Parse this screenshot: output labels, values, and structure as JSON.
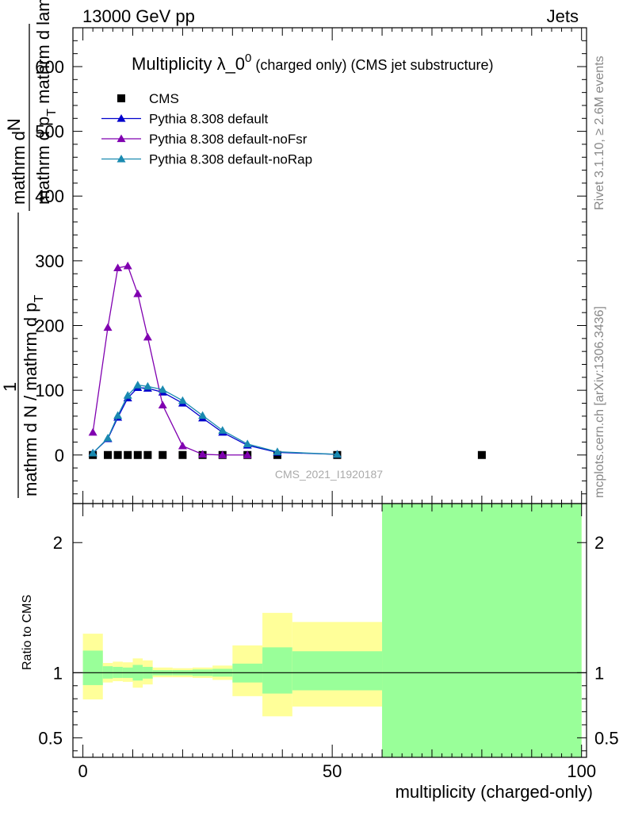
{
  "header": {
    "left": "13000 GeV pp",
    "right": "Jets"
  },
  "side": {
    "rivet": "Rivet 3.1.10, ≥ 2.6M events",
    "mcplots": "mcplots.cern.ch [arXiv:1306.3436]"
  },
  "watermark": "CMS_2021_I1920187",
  "chart_data": {
    "type": "scatter",
    "title": {
      "main": "Multiplicity λ_0",
      "sup": "0",
      "rest": " (charged only) (CMS jet substructure)"
    },
    "ylabel": {
      "frac_num_part": "mathrm d",
      "frac_num_N": "N",
      "frac_den": "mathrm d p",
      "frac_den_sub": "T",
      "frac_den_rest": " mathrm d lambda",
      "one": "1",
      "lower": "mathrm d N / mathrm d p",
      "lower_sub": "T"
    },
    "xlabel": "multiplicity (charged-only)",
    "ratio_ylabel": "Ratio to CMS",
    "xlim": [
      -2,
      101
    ],
    "ylim": [
      -75,
      660
    ],
    "ratio_ylim": [
      0.35,
      2.3
    ],
    "xticks": [
      0,
      50,
      100
    ],
    "yticks": [
      0,
      100,
      200,
      300,
      400,
      500,
      600
    ],
    "ratio_yticks": [
      {
        "v": 0.5,
        "label": "0.5"
      },
      {
        "v": 1,
        "label": "1"
      },
      {
        "v": 2,
        "label": "2"
      }
    ],
    "legend_position": "top-left",
    "series": [
      {
        "name": "CMS",
        "color": "#000000",
        "marker": "square",
        "x": [
          2,
          5,
          7,
          9,
          11,
          13,
          16,
          20,
          24,
          28,
          33,
          39,
          51,
          80
        ],
        "y": [
          0,
          0,
          0,
          0,
          0,
          0,
          0,
          0,
          0,
          0,
          0,
          0,
          0,
          0
        ]
      },
      {
        "name": "Pythia 8.308 default",
        "color": "#0000cc",
        "marker": "triangle",
        "x": [
          2,
          5,
          7,
          9,
          11,
          13,
          16,
          20,
          24,
          28,
          33,
          39,
          51
        ],
        "y": [
          3,
          25,
          58,
          88,
          104,
          103,
          97,
          80,
          57,
          35,
          15,
          4,
          1
        ]
      },
      {
        "name": "Pythia 8.308 default-noFsr",
        "color": "#8000b0",
        "marker": "triangle",
        "x": [
          2,
          5,
          7,
          9,
          11,
          13,
          16,
          20,
          24,
          28,
          33
        ],
        "y": [
          35,
          197,
          289,
          292,
          249,
          182,
          77,
          14,
          1,
          0,
          0
        ]
      },
      {
        "name": "Pythia 8.308 default-noRap",
        "color": "#1a8ab0",
        "marker": "triangle",
        "x": [
          2,
          5,
          7,
          9,
          11,
          13,
          16,
          20,
          24,
          28,
          33,
          39,
          51
        ],
        "y": [
          3,
          26,
          61,
          92,
          108,
          106,
          101,
          84,
          61,
          38,
          17,
          5,
          1
        ]
      }
    ],
    "ratio_bands": [
      {
        "x0": 0,
        "x1": 4,
        "in_lo": 0.905,
        "in_hi": 1.17,
        "out_lo": 0.795,
        "out_hi": 1.3
      },
      {
        "x0": 4,
        "x1": 6,
        "in_lo": 0.955,
        "in_hi": 1.05,
        "out_lo": 0.925,
        "out_hi": 1.075
      },
      {
        "x0": 6,
        "x1": 8,
        "in_lo": 0.96,
        "in_hi": 1.045,
        "out_lo": 0.935,
        "out_hi": 1.085
      },
      {
        "x0": 8,
        "x1": 10,
        "in_lo": 0.96,
        "in_hi": 1.04,
        "out_lo": 0.93,
        "out_hi": 1.08
      },
      {
        "x0": 10,
        "x1": 12,
        "in_lo": 0.94,
        "in_hi": 1.06,
        "out_lo": 0.885,
        "out_hi": 1.11
      },
      {
        "x0": 12,
        "x1": 14,
        "in_lo": 0.955,
        "in_hi": 1.045,
        "out_lo": 0.91,
        "out_hi": 1.095
      },
      {
        "x0": 14,
        "x1": 18,
        "in_lo": 0.98,
        "in_hi": 1.02,
        "out_lo": 0.965,
        "out_hi": 1.04
      },
      {
        "x0": 18,
        "x1": 22,
        "in_lo": 0.98,
        "in_hi": 1.02,
        "out_lo": 0.965,
        "out_hi": 1.035
      },
      {
        "x0": 22,
        "x1": 26,
        "in_lo": 0.975,
        "in_hi": 1.025,
        "out_lo": 0.96,
        "out_hi": 1.04
      },
      {
        "x0": 26,
        "x1": 30,
        "in_lo": 0.97,
        "in_hi": 1.03,
        "out_lo": 0.945,
        "out_hi": 1.055
      },
      {
        "x0": 30,
        "x1": 36,
        "in_lo": 0.925,
        "in_hi": 1.07,
        "out_lo": 0.82,
        "out_hi": 1.21
      },
      {
        "x0": 36,
        "x1": 42,
        "in_lo": 0.84,
        "in_hi": 1.195,
        "out_lo": 0.665,
        "out_hi": 1.46
      },
      {
        "x0": 42,
        "x1": 60,
        "in_lo": 0.865,
        "in_hi": 1.165,
        "out_lo": 0.74,
        "out_hi": 1.39
      },
      {
        "x0": 60,
        "x1": 100,
        "in_lo": 0.35,
        "in_hi": 2.3,
        "out_lo": 0.35,
        "out_hi": 2.3
      }
    ]
  }
}
